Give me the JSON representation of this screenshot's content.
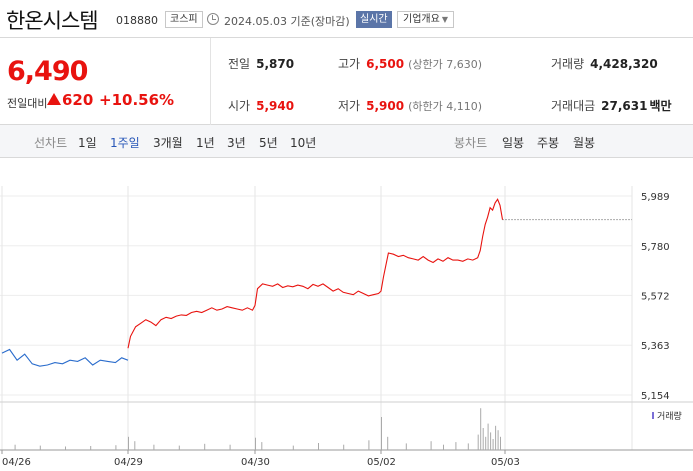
{
  "header": {
    "name": "한온시스템",
    "code": "018880",
    "market": "코스피",
    "date": "2024.05.03",
    "date_suffix": "기준(장마감)",
    "realtime_label": "실시간",
    "company_label": "기업개요"
  },
  "summary": {
    "price": "6,490",
    "change_label": "전일대비",
    "change_value": "620",
    "change_pct": "+10.56%",
    "prev_label": "전일",
    "prev_value": "5,870",
    "high_label": "고가",
    "high_value": "6,500",
    "upper_limit": "(상한가 7,630)",
    "volume_label": "거래량",
    "volume_value": "4,428,320",
    "open_label": "시가",
    "open_value": "5,940",
    "low_label": "저가",
    "low_value": "5,900",
    "lower_limit": "(하한가 4,110)",
    "amount_label": "거래대금",
    "amount_value": "27,631",
    "amount_unit": "백만"
  },
  "period_bar": {
    "line_chart_label": "선차트",
    "line_periods": [
      "1일",
      "1주일",
      "3개월",
      "1년",
      "3년",
      "5년",
      "10년"
    ],
    "active_period": "1주일",
    "candle_chart_label": "봉차트",
    "candle_periods": [
      "일봉",
      "주봉",
      "월봉"
    ]
  },
  "colors": {
    "up": "#e8130f",
    "down": "#2a6ccc",
    "accent": "#2857b8"
  },
  "chart_data": {
    "type": "line",
    "x_labels": [
      "04/26",
      "04/29",
      "04/30",
      "05/02",
      "05/03"
    ],
    "y_ticks": [
      5154,
      5363,
      5572,
      5780,
      5989
    ],
    "ylim": [
      5154,
      5989
    ],
    "grid": true,
    "legend": "거래량",
    "series": [
      {
        "color": "#2a6ccc",
        "x": [
          0.0,
          0.06,
          0.12,
          0.18,
          0.24,
          0.3,
          0.36,
          0.42,
          0.48,
          0.54,
          0.6,
          0.66,
          0.72,
          0.78,
          0.84,
          0.9,
          0.95,
          1.0
        ],
        "values": [
          5330,
          5345,
          5300,
          5325,
          5285,
          5275,
          5280,
          5290,
          5285,
          5300,
          5295,
          5310,
          5280,
          5300,
          5295,
          5290,
          5310,
          5300
        ]
      },
      {
        "color": "#e8130f",
        "x": [
          1.0,
          1.02,
          1.06,
          1.1,
          1.14,
          1.18,
          1.22,
          1.26,
          1.3,
          1.34,
          1.38,
          1.42,
          1.46,
          1.5,
          1.54,
          1.58,
          1.62,
          1.66,
          1.7,
          1.74,
          1.78,
          1.82,
          1.86,
          1.9,
          1.94,
          1.98,
          2.0,
          2.02,
          2.06,
          2.1,
          2.14,
          2.18,
          2.22,
          2.26,
          2.3,
          2.34,
          2.38,
          2.42,
          2.46,
          2.5,
          2.54,
          2.58,
          2.62,
          2.66,
          2.7,
          2.74,
          2.78,
          2.82,
          2.86,
          2.9,
          2.94,
          2.98,
          3.0,
          3.02,
          3.06,
          3.1,
          3.14,
          3.18,
          3.22,
          3.26,
          3.3,
          3.34,
          3.38,
          3.42,
          3.46,
          3.5,
          3.54,
          3.58,
          3.62,
          3.66,
          3.7,
          3.74,
          3.78,
          3.8,
          3.82,
          3.84,
          3.86,
          3.88,
          3.9,
          3.92,
          3.94,
          3.96,
          3.98
        ],
        "values": [
          5350,
          5400,
          5440,
          5455,
          5470,
          5460,
          5445,
          5470,
          5480,
          5475,
          5485,
          5490,
          5488,
          5500,
          5505,
          5500,
          5510,
          5520,
          5510,
          5515,
          5525,
          5520,
          5515,
          5510,
          5520,
          5510,
          5530,
          5600,
          5620,
          5615,
          5610,
          5620,
          5605,
          5612,
          5608,
          5615,
          5610,
          5600,
          5618,
          5610,
          5620,
          5605,
          5590,
          5600,
          5585,
          5580,
          5575,
          5590,
          5580,
          5570,
          5575,
          5580,
          5590,
          5650,
          5750,
          5745,
          5735,
          5740,
          5730,
          5725,
          5720,
          5735,
          5720,
          5710,
          5725,
          5715,
          5730,
          5720,
          5720,
          5715,
          5725,
          5720,
          5730,
          5760,
          5820,
          5870,
          5900,
          5940,
          5930,
          5960,
          5975,
          5950,
          5890
        ]
      }
    ],
    "reference_line": 5890,
    "volume": {
      "x": [
        0.1,
        0.3,
        0.5,
        0.7,
        0.9,
        1.0,
        1.05,
        1.2,
        1.4,
        1.6,
        1.8,
        2.0,
        2.05,
        2.3,
        2.5,
        2.7,
        2.9,
        3.0,
        3.05,
        3.2,
        3.4,
        3.5,
        3.6,
        3.7,
        3.78,
        3.8,
        3.82,
        3.84,
        3.86,
        3.88,
        3.9,
        3.92,
        3.94,
        3.96
      ],
      "values": [
        0.12,
        0.1,
        0.08,
        0.09,
        0.11,
        0.3,
        0.2,
        0.12,
        0.1,
        0.14,
        0.12,
        0.28,
        0.18,
        0.1,
        0.16,
        0.12,
        0.22,
        0.75,
        0.3,
        0.15,
        0.2,
        0.12,
        0.18,
        0.15,
        0.35,
        0.95,
        0.5,
        0.3,
        0.6,
        0.4,
        0.25,
        0.55,
        0.45,
        0.3
      ]
    }
  }
}
